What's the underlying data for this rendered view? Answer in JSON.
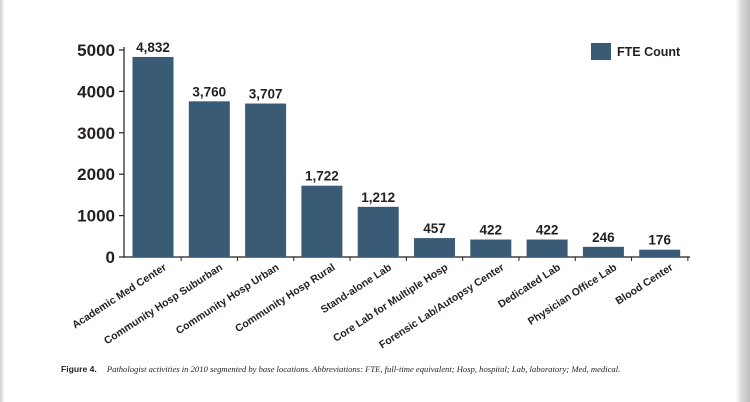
{
  "chart_data": {
    "type": "bar",
    "categories": [
      "Academic Med Center",
      "Community Hosp Suburban",
      "Community Hosp Urban",
      "Community Hosp Rural",
      "Stand-alone Lab",
      "Core Lab for Multiple Hosp",
      "Forensic Lab/Autopsy Center",
      "Dedicated Lab",
      "Physician Office Lab",
      "Blood Center"
    ],
    "series": [
      {
        "name": "FTE Count",
        "values": [
          4832,
          3760,
          3707,
          1722,
          1212,
          457,
          422,
          422,
          246,
          176
        ],
        "labels": [
          "4,832",
          "3,760",
          "3,707",
          "1,722",
          "1,212",
          "457",
          "422",
          "422",
          "246",
          "176"
        ]
      }
    ],
    "ylim": [
      0,
      5000
    ],
    "yticks": [
      0,
      1000,
      2000,
      3000,
      4000,
      5000
    ],
    "ytick_labels": [
      "0",
      "1000",
      "2000",
      "3000",
      "4000",
      "5000"
    ],
    "legend": "top-right",
    "grid": false,
    "bar_color": "#3a5b76"
  },
  "caption": {
    "figure_label": "Figure 4.",
    "text": "Pathologist activities in 2010 segmented by base locations. Abbreviations: FTE, full-time equivalent; Hosp, hospital; Lab, laboratory; Med, medical."
  }
}
